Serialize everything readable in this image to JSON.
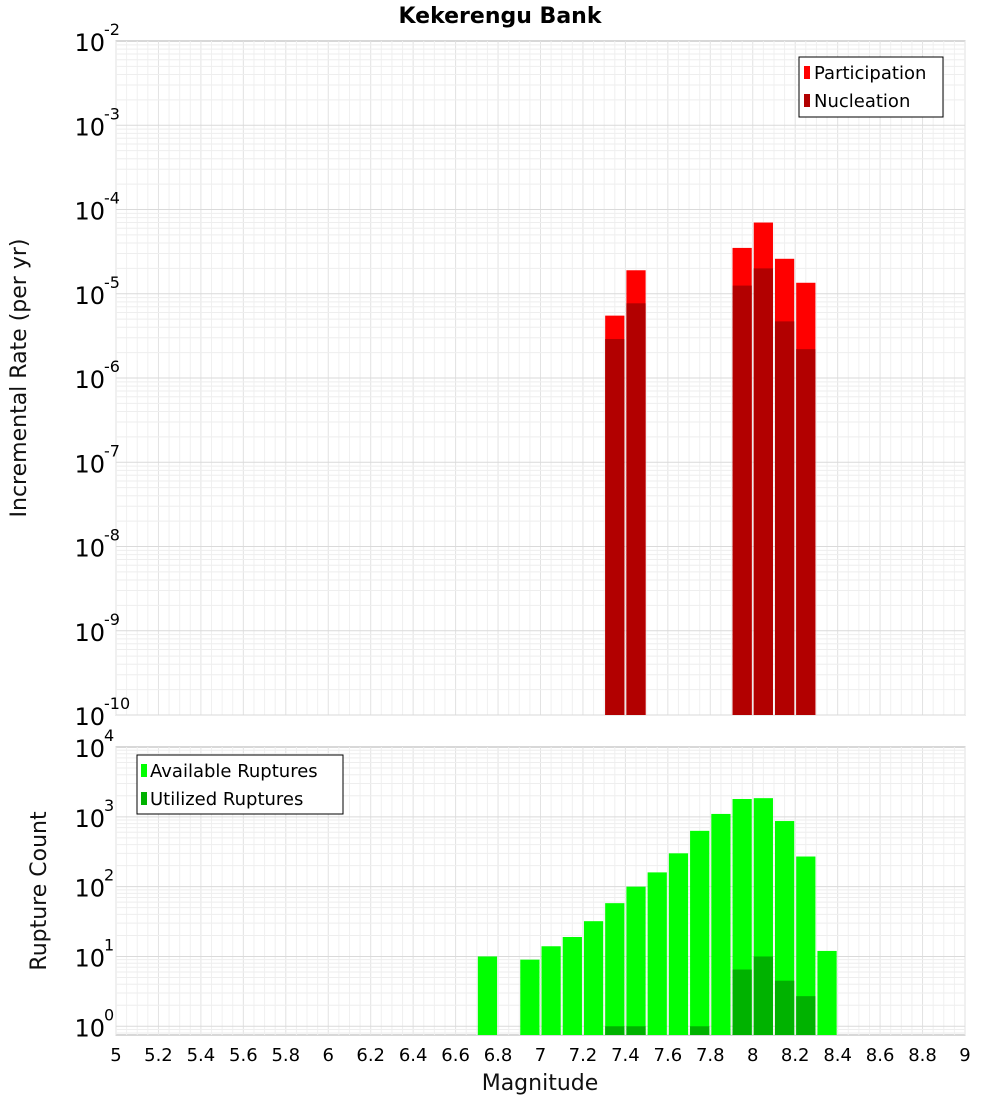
{
  "chart_data": [
    {
      "type": "bar",
      "title": "Kekerengu Bank",
      "xlabel": "Magnitude",
      "ylabel": "Incremental Rate (per yr)",
      "yscale": "log",
      "ylim": [
        1e-10,
        0.01
      ],
      "xlim": [
        5,
        9
      ],
      "bar_width": 0.1,
      "legend_position": "top-right",
      "y_ticks": [
        {
          "base": "10",
          "exp": "-10",
          "value": 1e-10
        },
        {
          "base": "10",
          "exp": "-9",
          "value": 1e-09
        },
        {
          "base": "10",
          "exp": "-8",
          "value": 1e-08
        },
        {
          "base": "10",
          "exp": "-7",
          "value": 1e-07
        },
        {
          "base": "10",
          "exp": "-6",
          "value": 1e-06
        },
        {
          "base": "10",
          "exp": "-5",
          "value": 1e-05
        },
        {
          "base": "10",
          "exp": "-4",
          "value": 0.0001
        },
        {
          "base": "10",
          "exp": "-3",
          "value": 0.001
        },
        {
          "base": "10",
          "exp": "-2",
          "value": 0.01
        }
      ],
      "series": [
        {
          "name": "Participation",
          "color": "#ff0000",
          "x": [
            7.35,
            7.45,
            7.95,
            8.05,
            8.15,
            8.25
          ],
          "values": [
            5.5e-06,
            1.9e-05,
            3.5e-05,
            7e-05,
            2.6e-05,
            1.35e-05
          ]
        },
        {
          "name": "Nucleation",
          "color": "#b20000",
          "x": [
            7.35,
            7.45,
            7.95,
            8.05,
            8.15,
            8.25
          ],
          "values": [
            2.9e-06,
            7.7e-06,
            1.25e-05,
            2e-05,
            4.7e-06,
            2.2e-06
          ]
        }
      ]
    },
    {
      "type": "bar",
      "title": "",
      "xlabel": "Magnitude",
      "ylabel": "Rupture Count",
      "yscale": "log",
      "ylim": [
        0.75,
        10000
      ],
      "xlim": [
        5,
        9
      ],
      "bar_width": 0.1,
      "legend_position": "top-left",
      "y_ticks": [
        {
          "base": "10",
          "exp": "0",
          "value": 1
        },
        {
          "base": "10",
          "exp": "1",
          "value": 10
        },
        {
          "base": "10",
          "exp": "2",
          "value": 100
        },
        {
          "base": "10",
          "exp": "3",
          "value": 1000
        },
        {
          "base": "10",
          "exp": "4",
          "value": 10000
        }
      ],
      "x_tick_labels": [
        "5",
        "5.2",
        "5.4",
        "5.6",
        "5.8",
        "6",
        "6.2",
        "6.4",
        "6.6",
        "6.8",
        "7",
        "7.2",
        "7.4",
        "7.6",
        "7.8",
        "8",
        "8.2",
        "8.4",
        "8.6",
        "8.8",
        "9"
      ],
      "series": [
        {
          "name": "Available Ruptures",
          "color": "#00ff00",
          "x": [
            6.75,
            6.95,
            7.05,
            7.15,
            7.25,
            7.35,
            7.45,
            7.55,
            7.65,
            7.75,
            7.85,
            7.95,
            8.05,
            8.15,
            8.25,
            8.35
          ],
          "values": [
            10,
            9,
            14,
            19,
            32,
            58,
            100,
            160,
            300,
            630,
            1100,
            1800,
            1850,
            870,
            270,
            12
          ]
        },
        {
          "name": "Utilized Ruptures",
          "color": "#00b200",
          "x": [
            7.35,
            7.45,
            7.75,
            7.95,
            8.05,
            8.15,
            8.25
          ],
          "values": [
            1,
            1,
            1,
            6.5,
            10,
            4.5,
            2.7
          ]
        }
      ]
    }
  ]
}
